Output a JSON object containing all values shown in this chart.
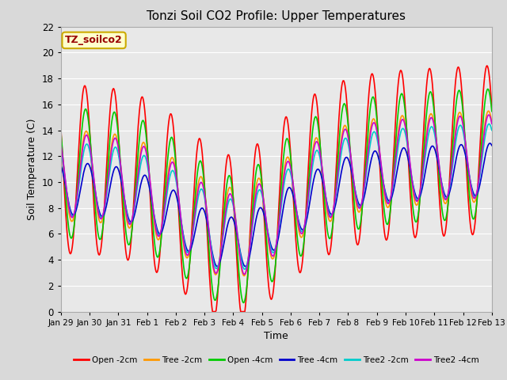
{
  "title": "Tonzi Soil CO2 Profile: Upper Temperatures",
  "xlabel": "Time",
  "ylabel": "Soil Temperature (C)",
  "ylim": [
    0,
    22
  ],
  "yticks": [
    0,
    2,
    4,
    6,
    8,
    10,
    12,
    14,
    16,
    18,
    20,
    22
  ],
  "fig_bg_color": "#d9d9d9",
  "plot_bg_color": "#e8e8e8",
  "series": [
    {
      "label": "Open -2cm",
      "color": "#ff0000",
      "lw": 1.2
    },
    {
      "label": "Tree -2cm",
      "color": "#ff9900",
      "lw": 1.2
    },
    {
      "label": "Open -4cm",
      "color": "#00cc00",
      "lw": 1.2
    },
    {
      "label": "Tree -4cm",
      "color": "#0000cc",
      "lw": 1.2
    },
    {
      "label": "Tree2 -2cm",
      "color": "#00cccc",
      "lw": 1.2
    },
    {
      "label": "Tree2 -4cm",
      "color": "#cc00cc",
      "lw": 1.2
    }
  ],
  "annotation_text": "TZ_soilco2",
  "annotation_color": "#990000",
  "annotation_bg": "#ffffcc",
  "num_days": 15,
  "grid_color": "#ffffff",
  "xtick_labels": [
    "Jan 29",
    "Jan 30",
    "Jan 31",
    "Feb 1",
    "Feb 2",
    "Feb 3",
    "Feb 4",
    "Feb 5",
    "Feb 6",
    "Feb 7",
    "Feb 8",
    "Feb 9",
    "Feb 10",
    "Feb 11",
    "Feb 12",
    "Feb 13"
  ]
}
